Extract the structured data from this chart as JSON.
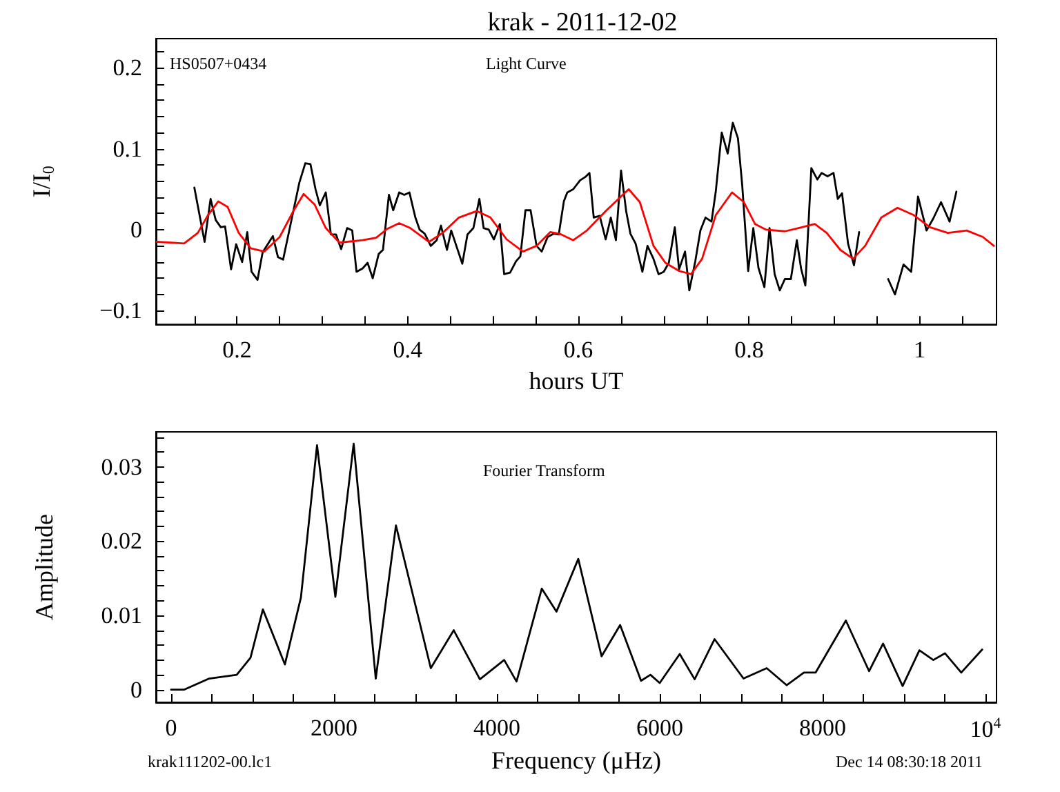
{
  "chart_data": [
    {
      "type": "line",
      "title": "krak - 2011-12-02",
      "xlabel": "hours UT",
      "ylabel": "I/I$_{0}$",
      "annotations": [
        "HS0507+0434",
        "Light Curve"
      ],
      "marker": "none",
      "xlim": [
        0.105,
        1.09
      ],
      "ylim": [
        -0.117,
        0.236
      ],
      "xticks": [
        {
          "value": 0.15,
          "label": null
        },
        0.2,
        {
          "value": 0.25,
          "label": null
        },
        {
          "value": 0.3,
          "label": null
        },
        {
          "value": 0.35,
          "label": null
        },
        0.4,
        {
          "value": 0.45,
          "label": null
        },
        {
          "value": 0.5,
          "label": null
        },
        {
          "value": 0.55,
          "label": null
        },
        0.6,
        {
          "value": 0.65,
          "label": null
        },
        {
          "value": 0.7,
          "label": null
        },
        {
          "value": 0.75,
          "label": null
        },
        0.8,
        {
          "value": 0.85,
          "label": null
        },
        {
          "value": 0.9,
          "label": null
        },
        {
          "value": 0.95,
          "label": null
        },
        1,
        {
          "value": 1.05,
          "label": null
        }
      ],
      "yticks": [
        {
          "value": -0.1,
          "label": "−0.1"
        },
        {
          "value": -0.08,
          "label": null
        },
        {
          "value": -0.06,
          "label": null
        },
        {
          "value": -0.04,
          "label": null
        },
        {
          "value": -0.02,
          "label": null
        },
        0,
        {
          "value": 0.02,
          "label": null
        },
        {
          "value": 0.04,
          "label": null
        },
        {
          "value": 0.06,
          "label": null
        },
        {
          "value": 0.08,
          "label": null
        },
        0.1,
        {
          "value": 0.12,
          "label": null
        },
        {
          "value": 0.14,
          "label": null
        },
        {
          "value": 0.16,
          "label": null
        },
        {
          "value": 0.18,
          "label": null
        },
        0.2,
        {
          "value": 0.22,
          "label": null
        }
      ],
      "series": [
        {
          "color": "#000000",
          "x": [
            0.15,
            0.162,
            0.169,
            0.175,
            0.181,
            0.186,
            0.193,
            0.199,
            0.206,
            0.212,
            0.217,
            0.224,
            0.23,
            0.242,
            0.248,
            0.254,
            0.266,
            0.273,
            0.28,
            0.286,
            0.292,
            0.297,
            0.304,
            0.31,
            0.316,
            0.322,
            0.329,
            0.335,
            0.34,
            0.347,
            0.353,
            0.359,
            0.366,
            0.371,
            0.378,
            0.383,
            0.39,
            0.396,
            0.402,
            0.409,
            0.414,
            0.42,
            0.427,
            0.434,
            0.439,
            0.446,
            0.451,
            0.464,
            0.47,
            0.477,
            0.484,
            0.489,
            0.495,
            0.501,
            0.508,
            0.513,
            0.52,
            0.527,
            0.532,
            0.538,
            0.544,
            0.551,
            0.557,
            0.564,
            0.571,
            0.577,
            0.583,
            0.587,
            0.594,
            0.602,
            0.608,
            0.613,
            0.618,
            0.625,
            0.632,
            0.638,
            0.644,
            0.65,
            0.656,
            0.661,
            0.667,
            0.675,
            0.681,
            0.688,
            0.694,
            0.7,
            0.706,
            0.713,
            0.718,
            0.725,
            0.73,
            0.737,
            0.743,
            0.749,
            0.756,
            0.761,
            0.768,
            0.775,
            0.781,
            0.787,
            0.792,
            0.799,
            0.805,
            0.811,
            0.818,
            0.824,
            0.83,
            0.836,
            0.842,
            0.849,
            0.856,
            0.861,
            0.866,
            0.873,
            0.88,
            0.885,
            0.892,
            0.899,
            0.904,
            0.909,
            0.916,
            0.923,
            0.929,
            0.946,
            0.963,
            0.971,
            0.981,
            0.99,
            0.998,
            1.008,
            1.016,
            1.025,
            1.035,
            1.043
          ],
          "values": [
            0.052,
            -0.015,
            0.038,
            0.012,
            0.003,
            0.004,
            -0.049,
            -0.018,
            -0.04,
            -0.003,
            -0.052,
            -0.062,
            -0.028,
            -0.008,
            -0.034,
            -0.037,
            0.023,
            0.058,
            0.082,
            0.081,
            0.05,
            0.03,
            0.046,
            -0.006,
            -0.006,
            -0.024,
            0.002,
            -0.001,
            -0.052,
            -0.048,
            -0.041,
            -0.06,
            -0.03,
            -0.025,
            0.043,
            0.024,
            0.046,
            0.043,
            0.046,
            0.015,
            0.0,
            -0.005,
            -0.02,
            -0.013,
            0.005,
            -0.025,
            -0.001,
            -0.042,
            -0.006,
            0.002,
            0.038,
            0.002,
            0.0,
            -0.012,
            0.007,
            -0.055,
            -0.053,
            -0.039,
            -0.033,
            0.024,
            0.024,
            -0.02,
            -0.027,
            -0.009,
            -0.005,
            -0.006,
            0.035,
            0.046,
            0.05,
            0.061,
            0.065,
            0.07,
            0.015,
            0.017,
            -0.012,
            0.015,
            -0.013,
            0.073,
            0.023,
            -0.005,
            -0.017,
            -0.052,
            -0.02,
            -0.036,
            -0.055,
            -0.052,
            -0.041,
            0.003,
            -0.049,
            -0.027,
            -0.075,
            -0.039,
            -0.001,
            0.015,
            0.01,
            0.047,
            0.12,
            0.094,
            0.132,
            0.113,
            0.055,
            -0.051,
            0.002,
            -0.047,
            -0.071,
            0.002,
            -0.055,
            -0.075,
            -0.061,
            -0.061,
            -0.013,
            -0.048,
            -0.069,
            0.076,
            0.062,
            0.07,
            0.066,
            0.07,
            0.038,
            0.045,
            -0.017,
            -0.044,
            -0.003,
            null,
            -0.061,
            -0.08,
            -0.043,
            -0.052,
            0.041,
            -0.001,
            0.014,
            0.034,
            0.01,
            0.047
          ]
        },
        {
          "color": "#ff0000",
          "x": [
            0.106,
            0.138,
            0.154,
            0.166,
            0.178,
            0.189,
            0.202,
            0.216,
            0.232,
            0.25,
            0.266,
            0.278,
            0.291,
            0.304,
            0.32,
            0.347,
            0.363,
            0.376,
            0.39,
            0.403,
            0.425,
            0.441,
            0.46,
            0.481,
            0.497,
            0.516,
            0.535,
            0.551,
            0.567,
            0.578,
            0.594,
            0.61,
            0.632,
            0.659,
            0.672,
            0.688,
            0.702,
            0.718,
            0.732,
            0.745,
            0.761,
            0.78,
            0.794,
            0.807,
            0.82,
            0.842,
            0.858,
            0.877,
            0.891,
            0.907,
            0.922,
            0.936,
            0.955,
            0.974,
            0.993,
            1.012,
            1.033,
            1.055,
            1.074,
            1.087
          ],
          "values": [
            -0.015,
            -0.017,
            -0.004,
            0.018,
            0.035,
            0.028,
            -0.004,
            -0.023,
            -0.027,
            -0.009,
            0.023,
            0.044,
            0.031,
            0.002,
            -0.016,
            -0.013,
            -0.01,
            0.001,
            0.008,
            0.002,
            -0.015,
            -0.004,
            0.015,
            0.023,
            0.015,
            -0.012,
            -0.027,
            -0.02,
            -0.003,
            -0.005,
            -0.013,
            -0.001,
            0.023,
            0.05,
            0.034,
            -0.02,
            -0.041,
            -0.051,
            -0.055,
            -0.036,
            0.018,
            0.046,
            0.034,
            0.007,
            0.0,
            -0.002,
            0.002,
            0.007,
            -0.004,
            -0.025,
            -0.036,
            -0.02,
            0.015,
            0.027,
            0.018,
            0.003,
            -0.004,
            -0.001,
            -0.009,
            -0.02
          ]
        }
      ]
    },
    {
      "type": "line",
      "xlabel": "Frequency (μHz)",
      "ylabel": "Amplitude",
      "annotations": [
        "Fourier Transform",
        "krak111202-00.lc1",
        "Dec 14 08:30:18 2011"
      ],
      "marker": "none",
      "xlim": [
        -186,
        10136
      ],
      "ylim": [
        -0.0017,
        0.0347
      ],
      "xticks": [
        0,
        {
          "value": 500,
          "label": null
        },
        {
          "value": 1000,
          "label": null
        },
        {
          "value": 1500,
          "label": null
        },
        2000,
        {
          "value": 2500,
          "label": null
        },
        {
          "value": 3000,
          "label": null
        },
        {
          "value": 3500,
          "label": null
        },
        4000,
        {
          "value": 4500,
          "label": null
        },
        {
          "value": 5000,
          "label": null
        },
        {
          "value": 5500,
          "label": null
        },
        6000,
        {
          "value": 6500,
          "label": null
        },
        {
          "value": 7000,
          "label": null
        },
        {
          "value": 7500,
          "label": null
        },
        8000,
        {
          "value": 8500,
          "label": null
        },
        {
          "value": 9000,
          "label": null
        },
        {
          "value": 9500,
          "label": null
        },
        {
          "value": 10000,
          "label": "10$^{4}$"
        }
      ],
      "yticks": [
        0,
        {
          "value": 0.002,
          "label": null
        },
        {
          "value": 0.004,
          "label": null
        },
        {
          "value": 0.006,
          "label": null
        },
        {
          "value": 0.008,
          "label": null
        },
        0.01,
        {
          "value": 0.012,
          "label": null
        },
        {
          "value": 0.014,
          "label": null
        },
        {
          "value": 0.016,
          "label": null
        },
        {
          "value": 0.018,
          "label": null
        },
        0.02,
        {
          "value": 0.022,
          "label": null
        },
        {
          "value": 0.024,
          "label": null
        },
        {
          "value": 0.026,
          "label": null
        },
        {
          "value": 0.028,
          "label": null
        },
        0.03,
        {
          "value": 0.032,
          "label": null
        },
        {
          "value": 0.034,
          "label": null
        }
      ],
      "series": [
        {
          "color": "#000000",
          "x": [
            0,
            158,
            468,
            806,
            975,
            1127,
            1397,
            1594,
            1792,
            2017,
            2242,
            2513,
            2761,
            3189,
            3471,
            3792,
            4090,
            4242,
            4552,
            4732,
            5000,
            5286,
            5514,
            5771,
            5886,
            6000,
            6246,
            6429,
            6674,
            7029,
            7314,
            7560,
            7771,
            7914,
            8286,
            8571,
            8743,
            8983,
            9189,
            9360,
            9503,
            9703,
            9960
          ],
          "values": [
            0,
            0,
            0.0015,
            0.002,
            0.0043,
            0.0108,
            0.0034,
            0.0124,
            0.0329,
            0.0125,
            0.0331,
            0.0015,
            0.0221,
            0.0029,
            0.008,
            0.0014,
            0.004,
            0.0011,
            0.0136,
            0.0105,
            0.0176,
            0.0045,
            0.0087,
            0.0012,
            0.002,
            0.0009,
            0.0048,
            0.0014,
            0.0068,
            0.0015,
            0.0029,
            0.0006,
            0.0023,
            0.0023,
            0.0093,
            0.0025,
            0.0062,
            0.0005,
            0.0053,
            0.004,
            0.0049,
            0.0023,
            0.0054
          ]
        }
      ]
    }
  ]
}
